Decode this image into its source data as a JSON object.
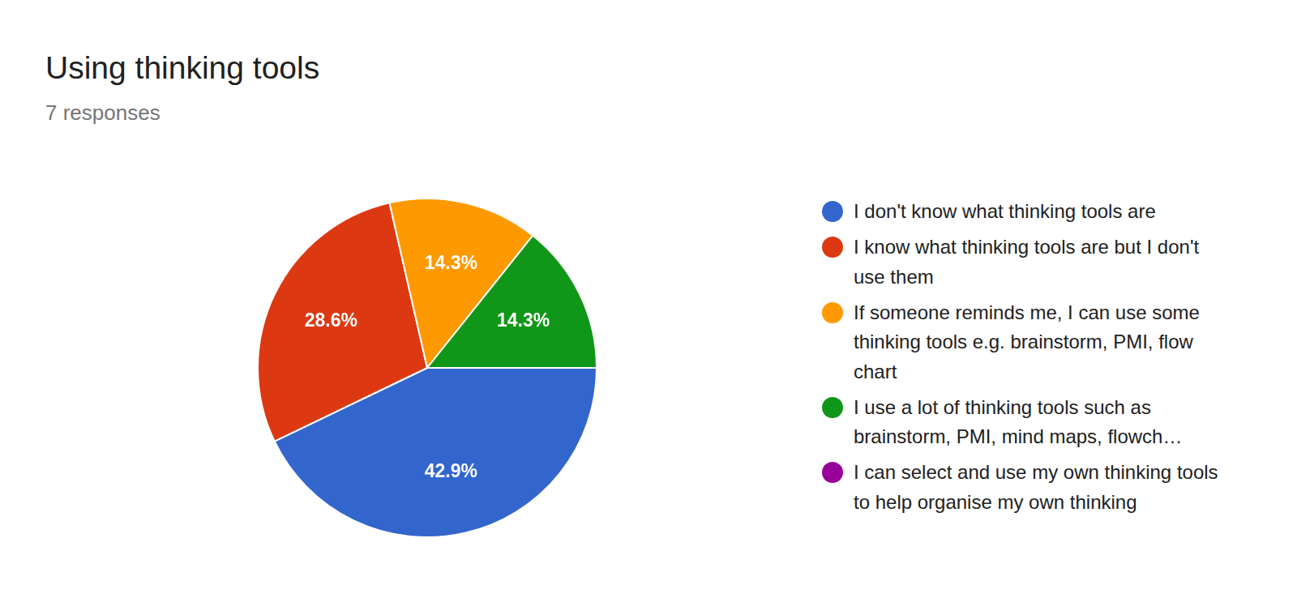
{
  "chart_data": {
    "type": "pie",
    "title": "Using thinking tools",
    "subtitle": "7 responses",
    "categories": [
      "I don't know what thinking tools are",
      "I know what thinking tools are but I don't use them",
      "If someone reminds me, I can use some thinking tools e.g. brainstorm, PMI, flow chart",
      "I use a lot of thinking tools such as brainstorm, PMI, mind maps, flowch…",
      "I can select and use my own thinking tools to help organise my own thinking"
    ],
    "values": [
      42.9,
      28.6,
      14.3,
      14.3,
      0
    ],
    "value_labels": [
      "42.9%",
      "28.6%",
      "14.3%",
      "14.3%",
      null
    ],
    "colors": [
      "#3366cc",
      "#dc3912",
      "#ff9900",
      "#109618",
      "#990099"
    ],
    "data_labels": true,
    "legend": "right"
  }
}
